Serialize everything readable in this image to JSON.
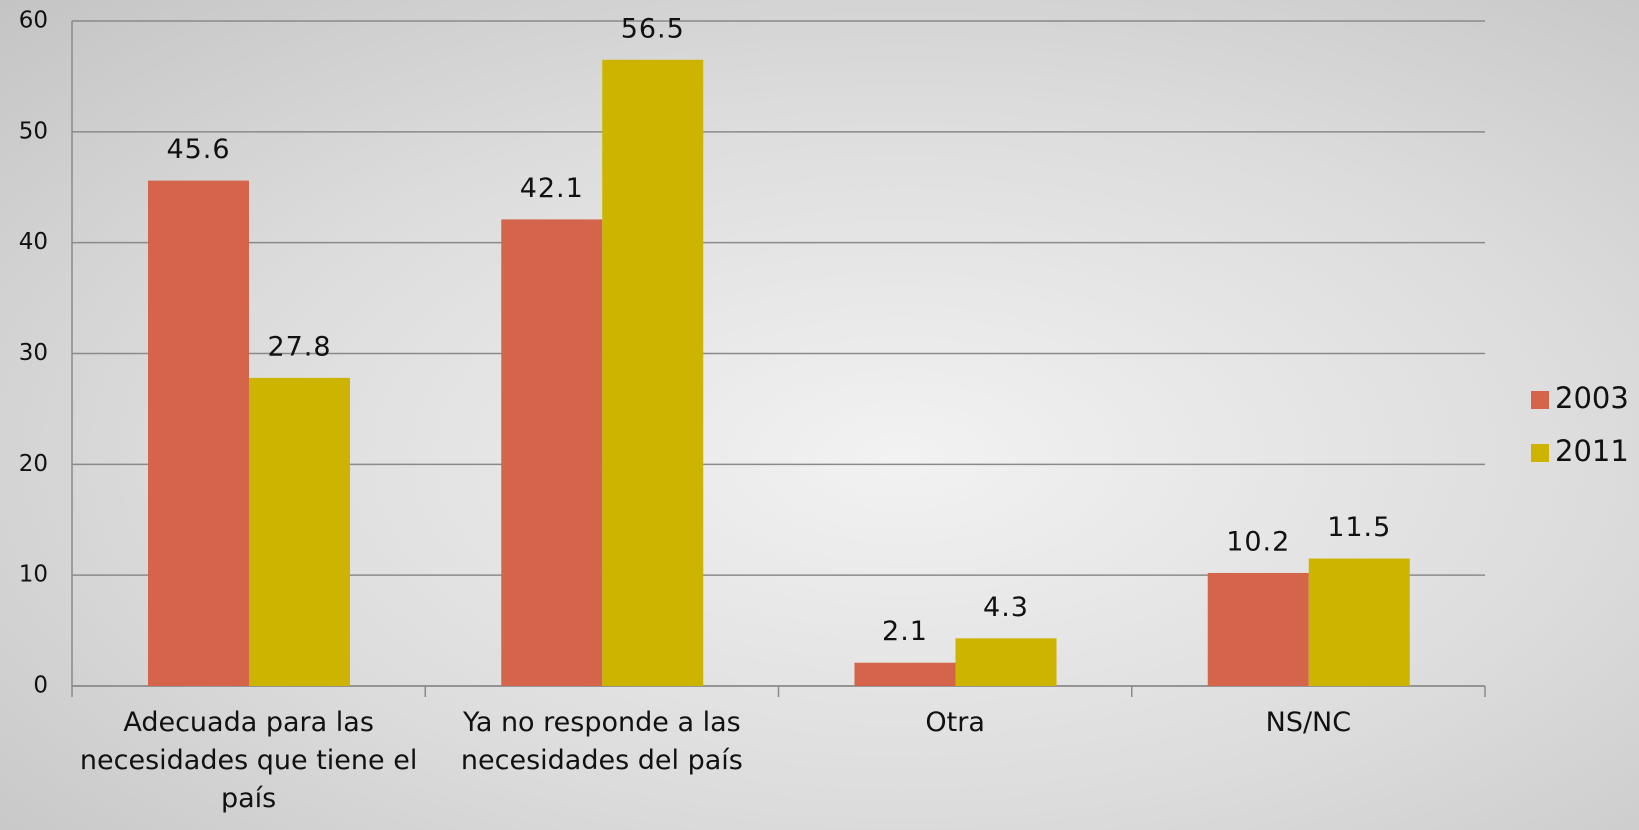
{
  "chart_data": {
    "type": "bar",
    "categories": [
      "Adecuada para las necesidades que tiene el país",
      "Ya no responde a las necesidades del país",
      "Otra",
      "NS/NC"
    ],
    "series": [
      {
        "name": "2003",
        "color": "#d4654a",
        "values": [
          45.6,
          42.1,
          2.1,
          10.2
        ]
      },
      {
        "name": "2011",
        "color": "#cdb400",
        "values": [
          27.8,
          56.5,
          4.3,
          11.5
        ]
      }
    ],
    "ylim": [
      0,
      60
    ],
    "yticks": [
      0,
      10,
      20,
      30,
      40,
      50,
      60
    ],
    "grid": true,
    "legend": "right"
  }
}
